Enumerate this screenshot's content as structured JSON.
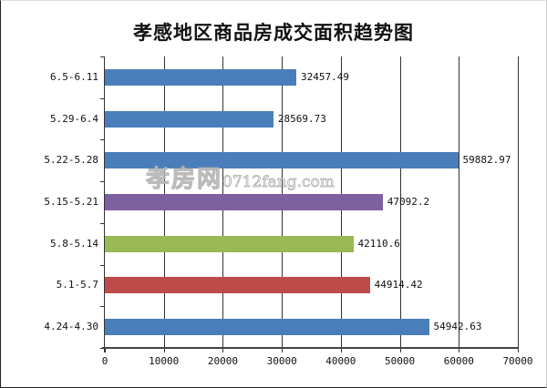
{
  "title": "孝感地区商品房成交面积趋势图",
  "watermark": {
    "brand": "孝房网",
    "domain": "0712fang.com"
  },
  "chart_data": {
    "type": "bar",
    "orientation": "horizontal",
    "title": "孝感地区商品房成交面积趋势图",
    "xlabel": "",
    "ylabel": "",
    "xlim": [
      0,
      70000
    ],
    "x_ticks": [
      "0",
      "10000",
      "20000",
      "30000",
      "40000",
      "50000",
      "60000",
      "70000"
    ],
    "grid": "vertical",
    "legend": "none",
    "categories": [
      "4.24-4.30",
      "5.1-5.7",
      "5.8-5.14",
      "5.15-5.21",
      "5.22-5.28",
      "5.29-6.4",
      "6.5-6.11"
    ],
    "values": [
      54942.63,
      44914.42,
      42110.6,
      47092.2,
      59882.97,
      28569.73,
      32457.49
    ],
    "value_labels": [
      "54942.63",
      "44914.42",
      "42110.6",
      "47092.2",
      "59882.97",
      "28569.73",
      "32457.49"
    ],
    "colors": [
      "#4a7ebb",
      "#be4b48",
      "#98b954",
      "#7d60a0",
      "#4a7ebb",
      "#4a7ebb",
      "#4a7ebb"
    ]
  }
}
